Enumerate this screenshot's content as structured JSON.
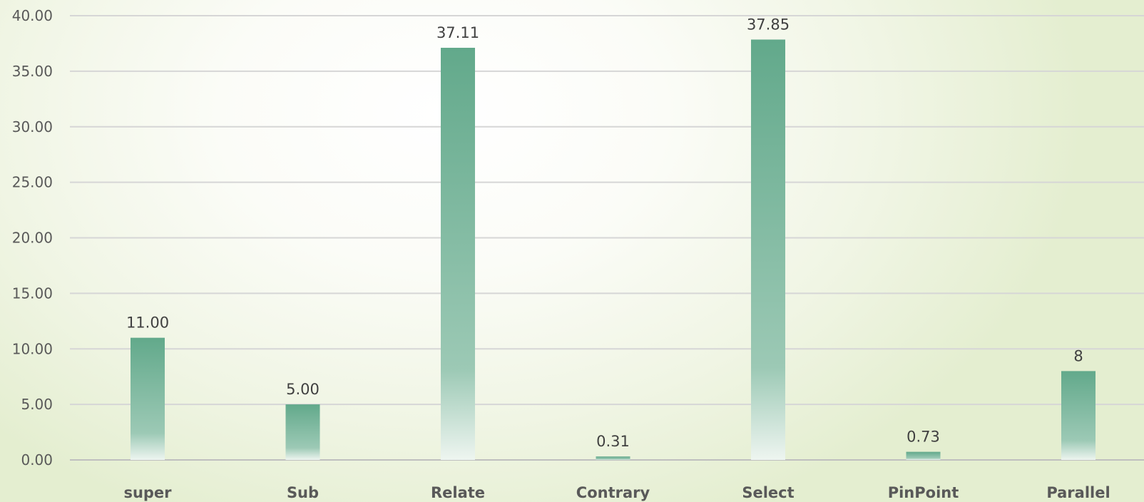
{
  "chart_data": {
    "type": "bar",
    "categories": [
      "super",
      "Sub",
      "Relate",
      "Contrary",
      "Select",
      "PinPoint",
      "Parallel"
    ],
    "values": [
      11.0,
      5.0,
      37.11,
      0.31,
      37.85,
      0.73,
      8
    ],
    "data_labels": [
      "11.00",
      "5.00",
      "37.11",
      "0.31",
      "37.85",
      "0.73",
      "8"
    ],
    "y_ticks": [
      "0.00",
      "5.00",
      "10.00",
      "15.00",
      "20.00",
      "25.00",
      "30.00",
      "35.00",
      "40.00"
    ],
    "ylim": [
      0,
      40
    ],
    "grid": true,
    "legend": "none",
    "bar_color": "#5ea68a"
  }
}
